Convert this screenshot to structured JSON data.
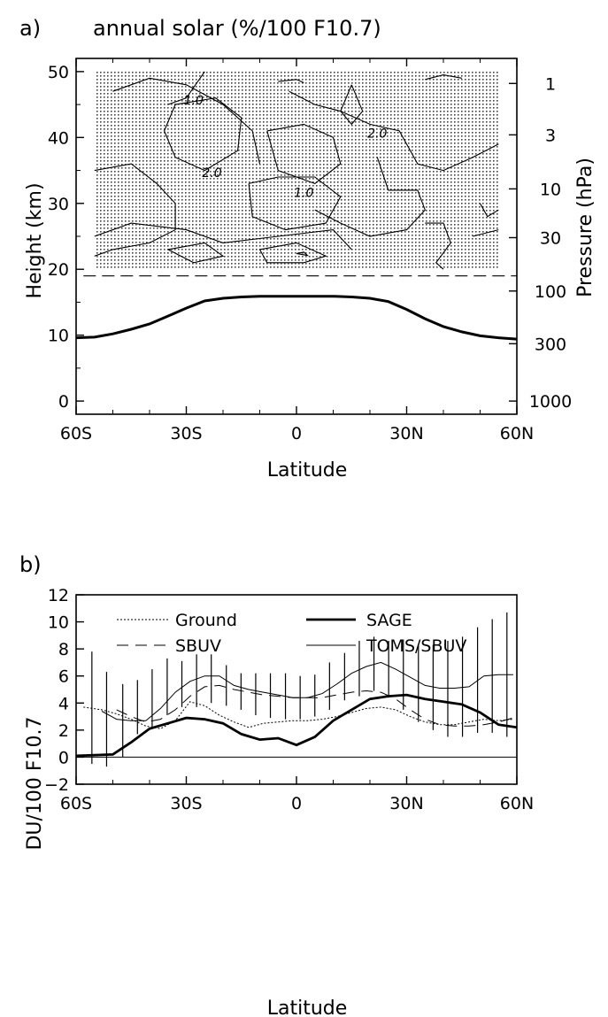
{
  "chart_data": [
    {
      "type": "heatmap",
      "panel_label": "a)",
      "title": "annual solar (%/100 F10.7",
      "xlabel": "Latitude",
      "ylabel": "Height (km)",
      "ylabel_right": "Pressure (hPa)",
      "xlim": [
        -60,
        60
      ],
      "ylim": [
        -2,
        52
      ],
      "x_tick_values": [
        -60,
        -30,
        0,
        30,
        60
      ],
      "x_tick_labels": [
        "60S",
        "30S",
        "0",
        "30N",
        "60N"
      ],
      "y_tick_values": [
        0,
        10,
        20,
        30,
        40,
        50
      ],
      "y_tick_labels": [
        "0",
        "10",
        "20",
        "30",
        "40",
        "50"
      ],
      "pressure_tick_labels": [
        "1",
        "3",
        "10",
        "30",
        "100",
        "300",
        "1000"
      ],
      "pressure_tick_heights_km": [
        48.2,
        40.4,
        32.2,
        24.8,
        16.7,
        8.7,
        0
      ],
      "contour_labels": [
        "1.0",
        "2.0",
        "2.0",
        "1.0"
      ],
      "contour_label_positions": [
        [
          -28,
          45
        ],
        [
          22,
          40
        ],
        [
          -23,
          34
        ],
        [
          2,
          31
        ]
      ],
      "stipple_region": {
        "lat": [
          -55,
          55
        ],
        "height_km": [
          20,
          50
        ]
      },
      "reference_line_height_km": 19,
      "tropopause": {
        "lat": [
          -60,
          -55,
          -50,
          -45,
          -40,
          -35,
          -30,
          -25,
          -20,
          -15,
          -10,
          -5,
          0,
          5,
          10,
          15,
          20,
          25,
          30,
          35,
          40,
          45,
          50,
          55,
          60
        ],
        "height_km": [
          9.6,
          9.7,
          10.2,
          10.9,
          11.7,
          12.9,
          14.1,
          15.2,
          15.6,
          15.8,
          15.9,
          15.9,
          15.9,
          15.9,
          15.9,
          15.8,
          15.6,
          15.1,
          13.9,
          12.5,
          11.3,
          10.5,
          9.9,
          9.6,
          9.4
        ]
      },
      "contours": [
        [
          [
            -55,
            35
          ],
          [
            -45,
            36
          ],
          [
            -38,
            33
          ],
          [
            -33,
            30
          ],
          [
            -33,
            26
          ],
          [
            -40,
            24
          ],
          [
            -50,
            23
          ],
          [
            -55,
            22
          ]
        ],
        [
          [
            -33,
            45
          ],
          [
            -22,
            46
          ],
          [
            -15,
            43
          ],
          [
            -16,
            38
          ],
          [
            -25,
            35
          ],
          [
            -33,
            37
          ],
          [
            -36,
            41
          ],
          [
            -33,
            45
          ]
        ],
        [
          [
            -50,
            47
          ],
          [
            -40,
            49
          ],
          [
            -30,
            48
          ],
          [
            -20,
            45
          ],
          [
            -12,
            41
          ],
          [
            -10,
            36
          ]
        ],
        [
          [
            -8,
            41
          ],
          [
            2,
            42
          ],
          [
            10,
            40
          ],
          [
            12,
            36
          ],
          [
            5,
            33
          ],
          [
            -5,
            35
          ],
          [
            -8,
            41
          ]
        ],
        [
          [
            -13,
            33
          ],
          [
            -5,
            34
          ],
          [
            5,
            34
          ],
          [
            12,
            31
          ],
          [
            8,
            27
          ],
          [
            -3,
            26
          ],
          [
            -12,
            28
          ],
          [
            -13,
            33
          ]
        ],
        [
          [
            -55,
            25
          ],
          [
            -45,
            27
          ],
          [
            -30,
            26
          ],
          [
            -20,
            24
          ],
          [
            -5,
            25
          ],
          [
            10,
            26
          ],
          [
            15,
            23
          ]
        ],
        [
          [
            -35,
            23
          ],
          [
            -25,
            24
          ],
          [
            -20,
            22
          ],
          [
            -28,
            21
          ],
          [
            -35,
            23
          ]
        ],
        [
          [
            -10,
            23
          ],
          [
            0,
            24
          ],
          [
            8,
            22
          ],
          [
            2,
            21
          ],
          [
            -8,
            21
          ],
          [
            -10,
            23
          ]
        ],
        [
          [
            0,
            22.4
          ],
          [
            2,
            22.6
          ],
          [
            3,
            22.1
          ],
          [
            0,
            22.4
          ]
        ],
        [
          [
            -2,
            47
          ],
          [
            5,
            45
          ],
          [
            12,
            44
          ],
          [
            20,
            42
          ],
          [
            28,
            41
          ],
          [
            33,
            36
          ],
          [
            40,
            35
          ],
          [
            48,
            37
          ],
          [
            55,
            39
          ]
        ],
        [
          [
            22,
            37
          ],
          [
            25,
            32
          ],
          [
            33,
            32
          ],
          [
            35,
            29
          ],
          [
            30,
            26
          ],
          [
            20,
            25
          ],
          [
            12,
            27
          ],
          [
            5,
            29
          ]
        ],
        [
          [
            35,
            27
          ],
          [
            40,
            27
          ],
          [
            42,
            24
          ],
          [
            38,
            21
          ],
          [
            40,
            20
          ]
        ],
        [
          [
            48,
            25
          ],
          [
            55,
            26
          ]
        ],
        [
          [
            -25,
            50
          ],
          [
            -30,
            46
          ],
          [
            -35,
            45
          ]
        ],
        [
          [
            15,
            48
          ],
          [
            18,
            44
          ],
          [
            15,
            42
          ],
          [
            12,
            44
          ],
          [
            15,
            48
          ]
        ],
        [
          [
            -5,
            48.5
          ],
          [
            0,
            48.8
          ],
          [
            2,
            48.3
          ]
        ],
        [
          [
            35,
            48.8
          ],
          [
            40,
            49.5
          ],
          [
            45,
            49
          ]
        ],
        [
          [
            50,
            30
          ],
          [
            52,
            28
          ],
          [
            55,
            29
          ]
        ]
      ]
    },
    {
      "type": "line",
      "panel_label": "b)",
      "xlabel": "Latitude",
      "ylabel": "DU/100 F10.7",
      "xlim": [
        -60,
        60
      ],
      "ylim": [
        -2,
        12
      ],
      "x_tick_values": [
        -60,
        -30,
        0,
        30,
        60
      ],
      "x_tick_labels": [
        "60S",
        "30S",
        "0",
        "30N",
        "60N"
      ],
      "y_tick_values": [
        -2,
        0,
        2,
        4,
        6,
        8,
        10,
        12
      ],
      "y_tick_labels": [
        "−2",
        "0",
        "2",
        "4",
        "6",
        "8",
        "10",
        "12"
      ],
      "legend_position": "top",
      "series": [
        {
          "name": "Ground",
          "style": "dotted",
          "x": [
            -58,
            -53,
            -49,
            -45,
            -41,
            -37,
            -33,
            -29,
            -25,
            -21,
            -17,
            -13,
            -9,
            -5,
            -1,
            3,
            7,
            11,
            15,
            19,
            23,
            27,
            31,
            35,
            39,
            43,
            47,
            51,
            55,
            59
          ],
          "y": [
            3.7,
            3.5,
            3.2,
            2.8,
            2.3,
            2.1,
            2.7,
            4.1,
            3.8,
            3.1,
            2.6,
            2.2,
            2.5,
            2.6,
            2.7,
            2.7,
            2.8,
            3.0,
            3.3,
            3.6,
            3.7,
            3.5,
            3.0,
            2.6,
            2.4,
            2.4,
            2.6,
            2.8,
            2.7,
            2.8
          ]
        },
        {
          "name": "SBUV",
          "style": "dashed",
          "x": [
            -49,
            -45,
            -41,
            -37,
            -33,
            -29,
            -25,
            -21,
            -17,
            -13,
            -9,
            -5,
            -1,
            3,
            7,
            11,
            15,
            19,
            23,
            27,
            31,
            35,
            39,
            43,
            47,
            51,
            55,
            59
          ],
          "y": [
            3.5,
            3.0,
            2.6,
            2.8,
            3.5,
            4.5,
            5.2,
            5.3,
            5.0,
            4.8,
            4.6,
            4.5,
            4.4,
            4.4,
            4.4,
            4.6,
            4.8,
            4.9,
            4.8,
            4.3,
            3.5,
            2.8,
            2.4,
            2.3,
            2.3,
            2.4,
            2.6,
            2.9
          ]
        },
        {
          "name": "SAGE",
          "style": "thick",
          "x": [
            -60,
            -55,
            -50,
            -45,
            -40,
            -35,
            -30,
            -25,
            -20,
            -15,
            -10,
            -5,
            0,
            5,
            10,
            15,
            20,
            25,
            30,
            35,
            40,
            45,
            50,
            55,
            60
          ],
          "y": [
            0.1,
            0.15,
            0.2,
            1.1,
            2.1,
            2.5,
            2.9,
            2.8,
            2.5,
            1.7,
            1.3,
            1.4,
            0.9,
            1.5,
            2.7,
            3.5,
            4.3,
            4.5,
            4.6,
            4.3,
            4.1,
            3.9,
            3.3,
            2.4,
            2.2
          ]
        },
        {
          "name": "TOMS/SBUV",
          "style": "thin",
          "x": [
            -53,
            -49,
            -45,
            -41,
            -37,
            -33,
            -29,
            -25,
            -21,
            -17,
            -13,
            -9,
            -5,
            -1,
            3,
            7,
            11,
            15,
            19,
            23,
            27,
            31,
            35,
            39,
            43,
            47,
            51,
            55,
            59
          ],
          "y": [
            3.4,
            2.8,
            2.7,
            2.7,
            3.6,
            4.8,
            5.6,
            6.0,
            6.0,
            5.3,
            5.0,
            4.8,
            4.6,
            4.4,
            4.4,
            4.7,
            5.4,
            6.2,
            6.7,
            7.0,
            6.5,
            5.9,
            5.3,
            5.1,
            5.1,
            5.2,
            6.0,
            6.1,
            6.1
          ]
        }
      ],
      "error_bars": [
        {
          "x": -55.7,
          "low": -0.5,
          "high": 7.8
        },
        {
          "x": -51.7,
          "low": -0.7,
          "high": 6.3
        },
        {
          "x": -47.3,
          "low": 0.0,
          "high": 5.4
        },
        {
          "x": -43.3,
          "low": 1.7,
          "high": 5.7
        },
        {
          "x": -39.3,
          "low": 2.1,
          "high": 6.5
        },
        {
          "x": -35.2,
          "low": 3.1,
          "high": 7.3
        },
        {
          "x": -31.2,
          "low": 3.7,
          "high": 7.1
        },
        {
          "x": -27.2,
          "low": 3.7,
          "high": 7.6
        },
        {
          "x": -23.2,
          "low": 4.0,
          "high": 7.6
        },
        {
          "x": -19.1,
          "low": 3.8,
          "high": 6.8
        },
        {
          "x": -15.1,
          "low": 3.5,
          "high": 6.2
        },
        {
          "x": -11.1,
          "low": 3.1,
          "high": 6.2
        },
        {
          "x": -7.1,
          "low": 2.9,
          "high": 6.2
        },
        {
          "x": -3.0,
          "low": 2.8,
          "high": 6.2
        },
        {
          "x": 1.0,
          "low": 2.8,
          "high": 6.0
        },
        {
          "x": 5.0,
          "low": 3.0,
          "high": 6.1
        },
        {
          "x": 9.0,
          "low": 3.5,
          "high": 7.0
        },
        {
          "x": 13.1,
          "low": 4.2,
          "high": 7.7
        },
        {
          "x": 17.1,
          "low": 4.5,
          "high": 8.6
        },
        {
          "x": 21.1,
          "low": 4.9,
          "high": 8.9
        },
        {
          "x": 25.1,
          "low": 4.4,
          "high": 8.6
        },
        {
          "x": 29.1,
          "low": 3.5,
          "high": 8.7
        },
        {
          "x": 33.2,
          "low": 2.6,
          "high": 8.3
        },
        {
          "x": 37.2,
          "low": 2.0,
          "high": 8.3
        },
        {
          "x": 41.2,
          "low": 1.5,
          "high": 8.6
        },
        {
          "x": 45.2,
          "low": 1.5,
          "high": 8.9
        },
        {
          "x": 49.3,
          "low": 1.8,
          "high": 9.6
        },
        {
          "x": 53.3,
          "low": 1.8,
          "high": 10.2
        },
        {
          "x": 57.3,
          "low": 1.5,
          "high": 10.7
        }
      ],
      "zero_line": 0
    }
  ]
}
